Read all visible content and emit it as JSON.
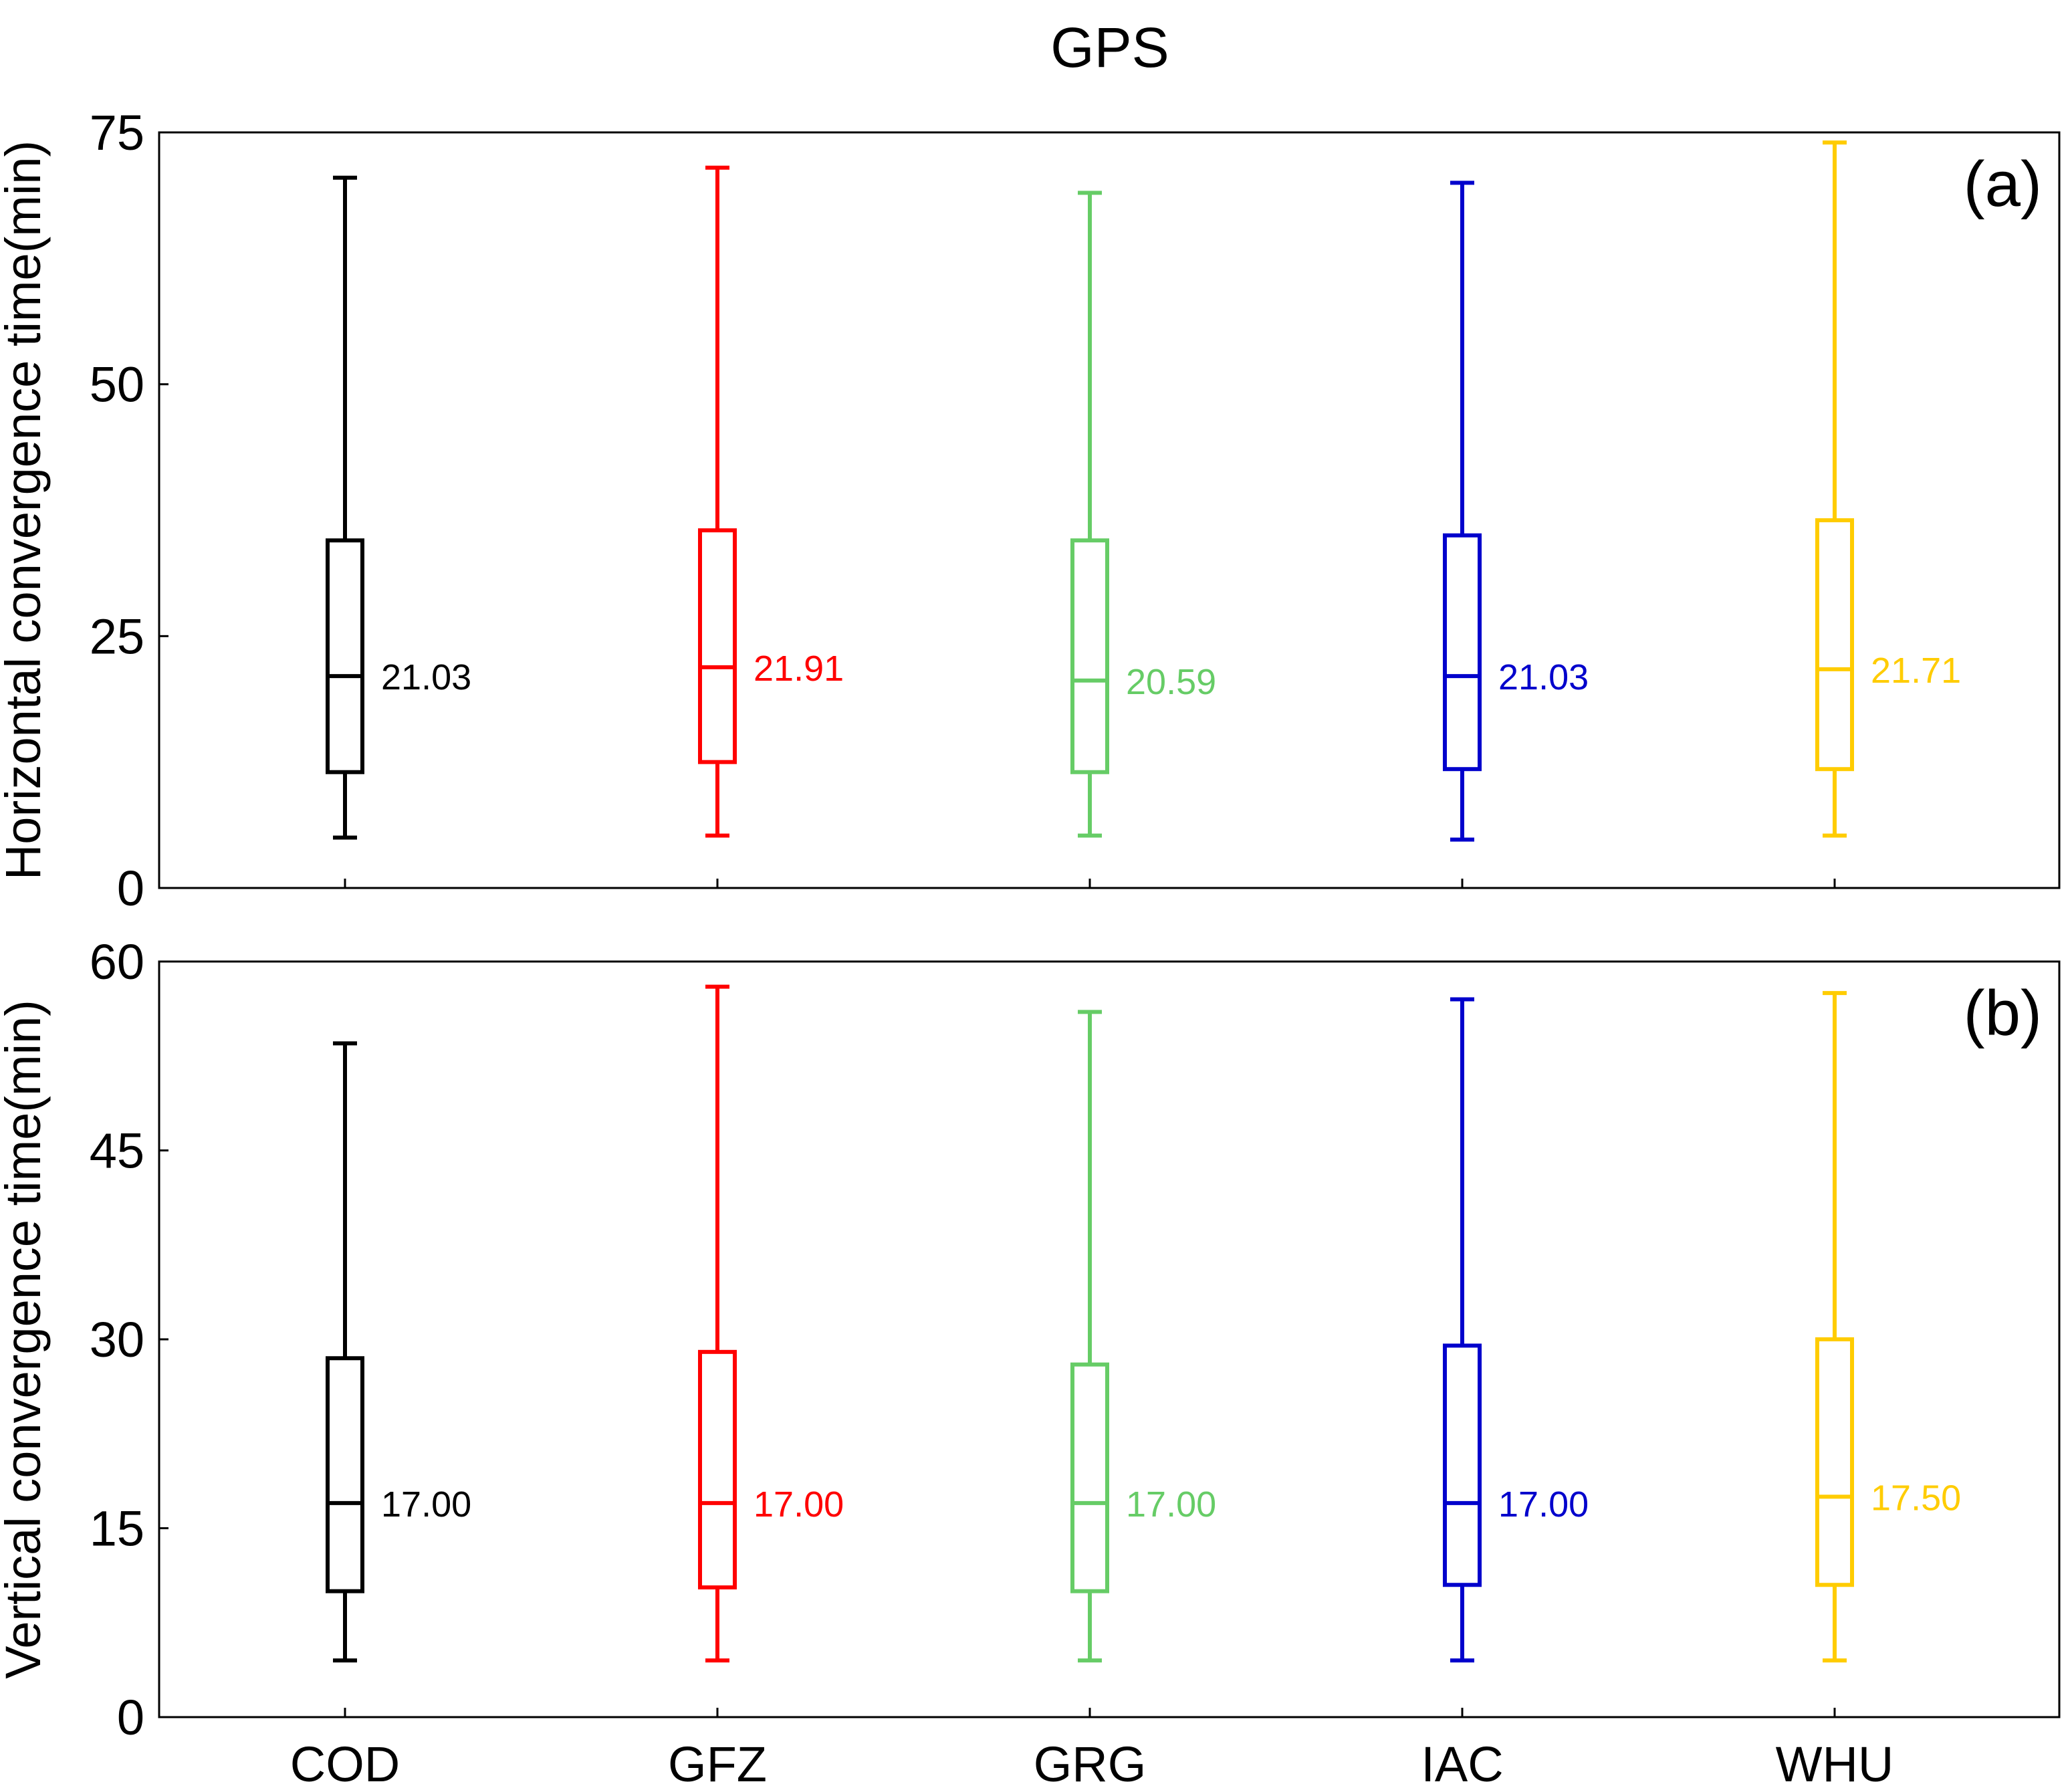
{
  "chart_data": [
    {
      "type": "box",
      "title": "GPS",
      "panel_label": "(a)",
      "ylabel": "Horizontal convergence time(min)",
      "xlabel": "",
      "ylim": [
        0,
        75
      ],
      "yticks": [
        0,
        25,
        50,
        75
      ],
      "categories": [
        "COD",
        "GFZ",
        "GRG",
        "IAC",
        "WHU"
      ],
      "colors": [
        "#000000",
        "#ff0000",
        "#66cc66",
        "#0000cc",
        "#ffcc00"
      ],
      "series": [
        {
          "name": "COD",
          "whisker_low": 5.0,
          "q1": 11.5,
          "median": 21.03,
          "q3": 34.5,
          "whisker_high": 70.5,
          "median_label": "21.03"
        },
        {
          "name": "GFZ",
          "whisker_low": 5.2,
          "q1": 12.5,
          "median": 21.91,
          "q3": 35.5,
          "whisker_high": 71.5,
          "median_label": "21.91"
        },
        {
          "name": "GRG",
          "whisker_low": 5.2,
          "q1": 11.5,
          "median": 20.59,
          "q3": 34.5,
          "whisker_high": 69.0,
          "median_label": "20.59"
        },
        {
          "name": "IAC",
          "whisker_low": 4.8,
          "q1": 11.8,
          "median": 21.03,
          "q3": 35.0,
          "whisker_high": 70.0,
          "median_label": "21.03"
        },
        {
          "name": "WHU",
          "whisker_low": 5.2,
          "q1": 11.8,
          "median": 21.71,
          "q3": 36.5,
          "whisker_high": 74.0,
          "median_label": "21.71"
        }
      ]
    },
    {
      "type": "box",
      "title": "",
      "panel_label": "(b)",
      "ylabel": "Vertical  convergence time(min)",
      "xlabel": "",
      "ylim": [
        0,
        60
      ],
      "yticks": [
        0,
        15,
        30,
        45,
        60
      ],
      "categories": [
        "COD",
        "GFZ",
        "GRG",
        "IAC",
        "WHU"
      ],
      "colors": [
        "#000000",
        "#ff0000",
        "#66cc66",
        "#0000cc",
        "#ffcc00"
      ],
      "series": [
        {
          "name": "COD",
          "whisker_low": 4.5,
          "q1": 10.0,
          "median": 17.0,
          "q3": 28.5,
          "whisker_high": 53.5,
          "median_label": "17.00"
        },
        {
          "name": "GFZ",
          "whisker_low": 4.5,
          "q1": 10.3,
          "median": 17.0,
          "q3": 29.0,
          "whisker_high": 58.0,
          "median_label": "17.00"
        },
        {
          "name": "GRG",
          "whisker_low": 4.5,
          "q1": 10.0,
          "median": 17.0,
          "q3": 28.0,
          "whisker_high": 56.0,
          "median_label": "17.00"
        },
        {
          "name": "IAC",
          "whisker_low": 4.5,
          "q1": 10.5,
          "median": 17.0,
          "q3": 29.5,
          "whisker_high": 57.0,
          "median_label": "17.00"
        },
        {
          "name": "WHU",
          "whisker_low": 4.5,
          "q1": 10.5,
          "median": 17.5,
          "q3": 30.0,
          "whisker_high": 57.5,
          "median_label": "17.50"
        }
      ]
    }
  ]
}
